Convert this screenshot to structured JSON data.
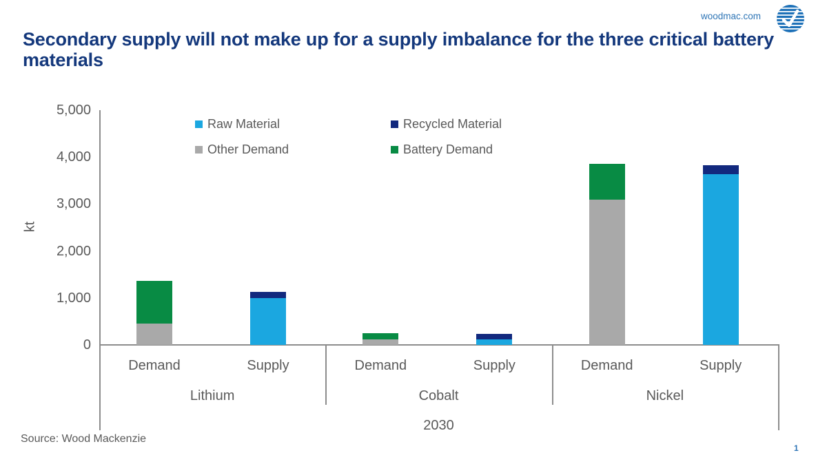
{
  "header": {
    "site": "woodmac.com"
  },
  "title": "Secondary supply will not make up for a supply imbalance for the three critical battery materials",
  "chart_data": {
    "type": "bar",
    "stacked": true,
    "ylabel": "kt",
    "ylim": [
      0,
      5000
    ],
    "grid": false,
    "legend_position": "top-inside, two columns",
    "yticks": [
      {
        "value": 0,
        "label": "0"
      },
      {
        "value": 1000,
        "label": "1,000"
      },
      {
        "value": 2000,
        "label": "2,000"
      },
      {
        "value": 3000,
        "label": "3,000"
      },
      {
        "value": 4000,
        "label": "4,000"
      },
      {
        "value": 5000,
        "label": "5,000"
      }
    ],
    "legend": [
      {
        "name": "Raw Material",
        "color": "#1ba7e0"
      },
      {
        "name": "Recycled Material",
        "color": "#12297e"
      },
      {
        "name": "Other Demand",
        "color": "#a9a9a9"
      },
      {
        "name": "Battery Demand",
        "color": "#088b44"
      }
    ],
    "x_axis_caption": "2030",
    "groups": [
      {
        "label": "Lithium",
        "bars": [
          {
            "label": "Demand",
            "segments": [
              {
                "series": "Other Demand",
                "value": 450
              },
              {
                "series": "Battery Demand",
                "value": 910
              }
            ]
          },
          {
            "label": "Supply",
            "segments": [
              {
                "series": "Raw Material",
                "value": 1000
              },
              {
                "series": "Recycled Material",
                "value": 130
              }
            ]
          }
        ]
      },
      {
        "label": "Cobalt",
        "bars": [
          {
            "label": "Demand",
            "segments": [
              {
                "series": "Other Demand",
                "value": 115
              },
              {
                "series": "Battery Demand",
                "value": 135
              }
            ]
          },
          {
            "label": "Supply",
            "segments": [
              {
                "series": "Raw Material",
                "value": 120
              },
              {
                "series": "Recycled Material",
                "value": 110
              }
            ]
          }
        ]
      },
      {
        "label": "Nickel",
        "bars": [
          {
            "label": "Demand",
            "segments": [
              {
                "series": "Other Demand",
                "value": 3090
              },
              {
                "series": "Battery Demand",
                "value": 770
              }
            ]
          },
          {
            "label": "Supply",
            "segments": [
              {
                "series": "Raw Material",
                "value": 3640
              },
              {
                "series": "Recycled Material",
                "value": 180
              }
            ]
          }
        ]
      }
    ]
  },
  "footer": {
    "source": "Source: Wood Mackenzie",
    "page_number": "1"
  }
}
